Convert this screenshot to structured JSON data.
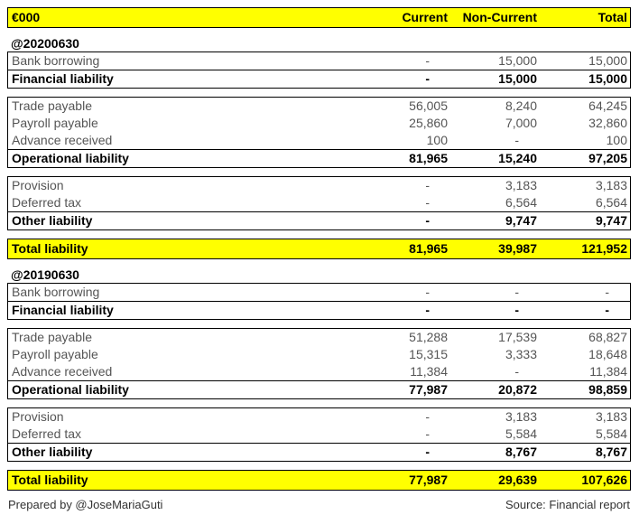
{
  "header": {
    "unit_label": "€000",
    "columns": [
      "Current",
      "Non-Current",
      "Total"
    ]
  },
  "colors": {
    "highlight": "#ffff00",
    "border": "#000000",
    "text_regular": "#555555",
    "text_bold": "#000000"
  },
  "sections": [
    {
      "date_label": "@20200630",
      "groups": [
        {
          "rows": [
            {
              "label": "Bank borrowing",
              "values": [
                "-",
                "15,000",
                "15,000"
              ]
            }
          ],
          "total": {
            "label": "Financial liability",
            "values": [
              "-",
              "15,000",
              "15,000"
            ]
          }
        },
        {
          "rows": [
            {
              "label": "Trade payable",
              "values": [
                "56,005",
                "8,240",
                "64,245"
              ]
            },
            {
              "label": "Payroll payable",
              "values": [
                "25,860",
                "7,000",
                "32,860"
              ]
            },
            {
              "label": "Advance received",
              "values": [
                "100",
                "-",
                "100"
              ]
            }
          ],
          "total": {
            "label": "Operational liability",
            "values": [
              "81,965",
              "15,240",
              "97,205"
            ]
          }
        },
        {
          "rows": [
            {
              "label": "Provision",
              "values": [
                "-",
                "3,183",
                "3,183"
              ]
            },
            {
              "label": "Deferred tax",
              "values": [
                "-",
                "6,564",
                "6,564"
              ]
            }
          ],
          "total": {
            "label": "Other liability",
            "values": [
              "-",
              "9,747",
              "9,747"
            ]
          }
        }
      ],
      "grand_total": {
        "label": "Total liability",
        "values": [
          "81,965",
          "39,987",
          "121,952"
        ]
      }
    },
    {
      "date_label": "@20190630",
      "groups": [
        {
          "rows": [
            {
              "label": "Bank borrowing",
              "values": [
                "-",
                "-",
                "-"
              ]
            }
          ],
          "total": {
            "label": "Financial liability",
            "values": [
              "-",
              "-",
              "-"
            ]
          }
        },
        {
          "rows": [
            {
              "label": "Trade payable",
              "values": [
                "51,288",
                "17,539",
                "68,827"
              ]
            },
            {
              "label": "Payroll payable",
              "values": [
                "15,315",
                "3,333",
                "18,648"
              ]
            },
            {
              "label": "Advance received",
              "values": [
                "11,384",
                "-",
                "11,384"
              ]
            }
          ],
          "total": {
            "label": "Operational liability",
            "values": [
              "77,987",
              "20,872",
              "98,859"
            ]
          }
        },
        {
          "rows": [
            {
              "label": "Provision",
              "values": [
                "-",
                "3,183",
                "3,183"
              ]
            },
            {
              "label": "Deferred tax",
              "values": [
                "-",
                "5,584",
                "5,584"
              ]
            }
          ],
          "total": {
            "label": "Other liability",
            "values": [
              "-",
              "8,767",
              "8,767"
            ]
          }
        }
      ],
      "grand_total": {
        "label": "Total liability",
        "values": [
          "77,987",
          "29,639",
          "107,626"
        ]
      }
    }
  ],
  "footer": {
    "left": "Prepared by @JoseMariaGuti",
    "right": "Source: Financial report"
  }
}
